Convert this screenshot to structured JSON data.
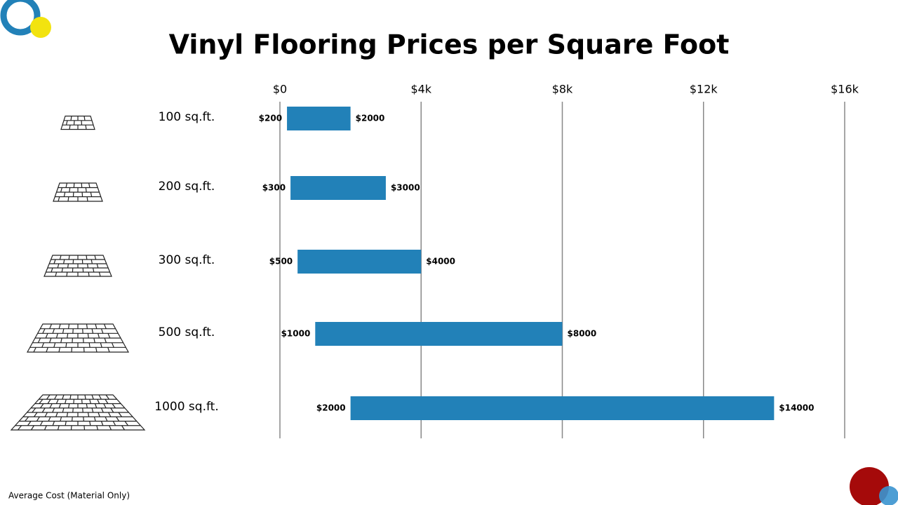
{
  "chart_data": {
    "type": "range_bar",
    "title": "Vinyl Flooring Prices per Square Foot",
    "categories": [
      "100 sq.ft.",
      "200 sq.ft.",
      "300 sq.ft.",
      "500 sq.ft.",
      "1000 sq.ft."
    ],
    "starts": [
      200,
      300,
      500,
      1000,
      2000
    ],
    "start_labels": [
      "$200",
      "$300",
      "$500",
      "$1000",
      "$2000"
    ],
    "ends": [
      2000,
      3000,
      4000,
      8000,
      14000
    ],
    "end_labels": [
      "$2000",
      "$3000",
      "$4000",
      "$8000",
      "$14000"
    ],
    "color": "#2281b8",
    "xlim": [
      0,
      16000
    ],
    "xticks": [
      {
        "value": 0,
        "label": "$0"
      },
      {
        "value": 4000,
        "label": "$4k"
      },
      {
        "value": 8000,
        "label": "$8k"
      },
      {
        "value": 12000,
        "label": "$12k"
      },
      {
        "value": 16000,
        "label": "$16k"
      }
    ],
    "grid": true,
    "footnote": "Average Cost (Material Only)"
  }
}
